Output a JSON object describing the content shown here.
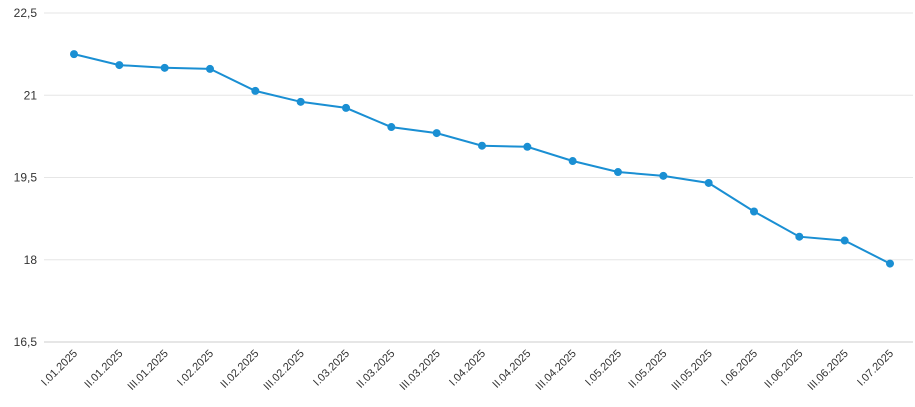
{
  "chart_data": {
    "type": "line",
    "title": "",
    "xlabel": "",
    "ylabel": "",
    "ylim": [
      16.5,
      22.5
    ],
    "yticks": [
      "22,5",
      "21",
      "19,5",
      "18",
      "16,5"
    ],
    "grid": true,
    "legend": "none",
    "categories": [
      "I.01.2025",
      "II.01.2025",
      "III.01.2025",
      "I.02.2025",
      "II.02.2025",
      "III.02.2025",
      "I.03.2025",
      "II.03.2025",
      "III.03.2025",
      "I.04.2025",
      "II.04.2025",
      "III.04.2025",
      "I.05.2025",
      "II.05.2025",
      "III.05.2025",
      "I.06.2025",
      "II.06.2025",
      "III.06.2025",
      "I.07.2025"
    ],
    "series": [
      {
        "color": "#1a8fd3",
        "values": [
          21.75,
          21.55,
          21.5,
          21.48,
          21.08,
          20.88,
          20.77,
          20.42,
          20.31,
          20.08,
          20.06,
          19.8,
          19.6,
          19.53,
          19.4,
          18.88,
          18.42,
          18.35,
          17.93
        ]
      }
    ],
    "gridline_color": "#e6e6e6",
    "axis_color": "#cccccc"
  }
}
